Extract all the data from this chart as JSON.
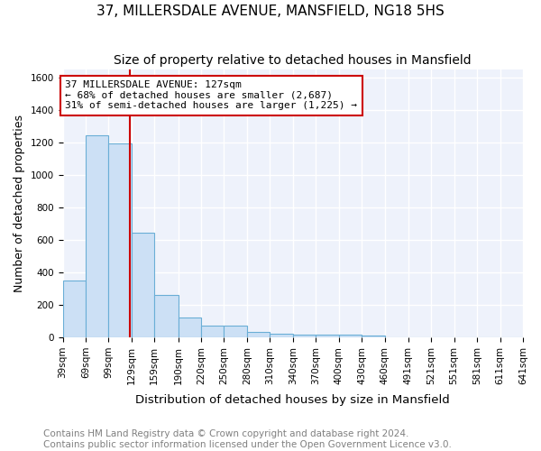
{
  "title": "37, MILLERSDALE AVENUE, MANSFIELD, NG18 5HS",
  "subtitle": "Size of property relative to detached houses in Mansfield",
  "xlabel": "Distribution of detached houses by size in Mansfield",
  "ylabel": "Number of detached properties",
  "footnote1": "Contains HM Land Registry data © Crown copyright and database right 2024.",
  "footnote2": "Contains public sector information licensed under the Open Government Licence v3.0.",
  "bar_edges": [
    39,
    69,
    99,
    129,
    159,
    190,
    220,
    250,
    280,
    310,
    340,
    370,
    400,
    430,
    460,
    491,
    521,
    551,
    581,
    611,
    641
  ],
  "bar_heights": [
    350,
    1240,
    1190,
    645,
    260,
    125,
    75,
    75,
    35,
    22,
    15,
    15,
    15,
    12,
    0,
    0,
    0,
    0,
    0,
    0
  ],
  "bar_color": "#cce0f5",
  "bar_edge_color": "#6aaed6",
  "property_size": 127,
  "vline_color": "#cc0000",
  "annotation_text": "37 MILLERSDALE AVENUE: 127sqm\n← 68% of detached houses are smaller (2,687)\n31% of semi-detached houses are larger (1,225) →",
  "annotation_box_color": "white",
  "annotation_box_edgecolor": "#cc0000",
  "ylim": [
    0,
    1650
  ],
  "yticks": [
    0,
    200,
    400,
    600,
    800,
    1000,
    1200,
    1400,
    1600
  ],
  "background_color": "#eef2fb",
  "grid_color": "white",
  "title_fontsize": 11,
  "subtitle_fontsize": 10,
  "xlabel_fontsize": 9.5,
  "ylabel_fontsize": 9,
  "tick_fontsize": 7.5,
  "annotation_fontsize": 8,
  "footnote_fontsize": 7.5
}
